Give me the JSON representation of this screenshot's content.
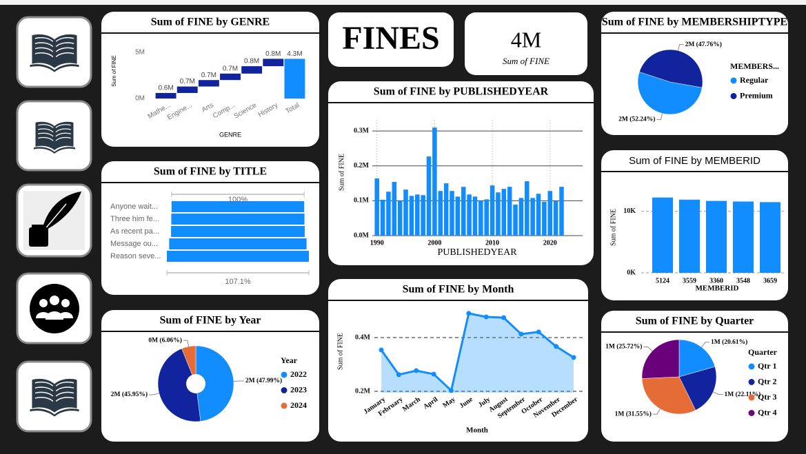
{
  "header": {
    "title": "FINES"
  },
  "kpi": {
    "value": "4M",
    "label": "Sum of FINE"
  },
  "chart_data": [
    {
      "type": "waterfall",
      "title": "Sum of FINE by GENRE",
      "x_label": "GENRE",
      "y_label": "Sum of FINE",
      "categories": [
        "Mathe...",
        "Engine...",
        "Arts",
        "Comp...",
        "Science",
        "History",
        "Total"
      ],
      "values": [
        0.6,
        0.7,
        0.7,
        0.7,
        0.8,
        0.8,
        4.3
      ],
      "value_labels": [
        "0.6M",
        "0.7M",
        "0.7M",
        "0.7M",
        "0.8M",
        "0.8M",
        "4.3M"
      ],
      "colors": {
        "increase": "#12239E",
        "total": "#118DFF"
      },
      "ylim": [
        0,
        5
      ],
      "yticks": [
        {
          "value": 0,
          "label": "0M"
        },
        {
          "value": 5,
          "label": "5M"
        }
      ]
    },
    {
      "type": "funnel",
      "title": "Sum of FINE by TITLE",
      "categories": [
        "Anyone wait...",
        "Three him fe...",
        "As recent pa...",
        "Message ou...",
        "Reason seve..."
      ],
      "values": [
        100,
        100.4,
        100.8,
        103.6,
        107.1
      ],
      "color": "#118DFF",
      "annotations": [
        "100%",
        "107.1%"
      ]
    },
    {
      "type": "donut",
      "title": "Sum of FINE by Year",
      "legend_title": "Year",
      "categories": [
        "2022",
        "2023",
        "2024"
      ],
      "values": [
        47.99,
        45.95,
        6.06
      ],
      "value_labels": [
        "2M (47.99%)",
        "2M (45.95%)",
        "0M (6.06%)"
      ],
      "colors": [
        "#118DFF",
        "#12239E",
        "#E66C37"
      ],
      "legend": "right"
    },
    {
      "type": "bar",
      "title": "Sum of FINE by PUBLISHEDYEAR",
      "x_label": "PUBLISHEDYEAR",
      "y_label": "Sum of FINE",
      "x": [
        1990,
        1991,
        1992,
        1993,
        1994,
        1995,
        1996,
        1997,
        1998,
        1999,
        2000,
        2001,
        2002,
        2003,
        2004,
        2005,
        2006,
        2007,
        2008,
        2009,
        2010,
        2011,
        2012,
        2013,
        2014,
        2015,
        2016,
        2017,
        2018,
        2019,
        2020,
        2021,
        2022
      ],
      "values": [
        0.164,
        0.103,
        0.126,
        0.154,
        0.1,
        0.132,
        0.114,
        0.118,
        0.116,
        0.227,
        0.31,
        0.128,
        0.15,
        0.128,
        0.112,
        0.14,
        0.118,
        0.112,
        0.1,
        0.104,
        0.144,
        0.124,
        0.134,
        0.14,
        0.089,
        0.108,
        0.156,
        0.108,
        0.12,
        0.097,
        0.128,
        0.099,
        0.14
      ],
      "color": "#118DFF",
      "xlim": [
        1989.2,
        2022.9
      ],
      "xticks": [
        1990,
        2000,
        2010,
        2020
      ],
      "ylim": [
        0,
        0.33
      ],
      "yticks": [
        {
          "value": 0,
          "label": "0.0M"
        },
        {
          "value": 0.1,
          "label": "0.1M"
        },
        {
          "value": 0.2,
          "label": "0.2M"
        },
        {
          "value": 0.3,
          "label": "0.3M"
        }
      ],
      "grid": true
    },
    {
      "type": "area",
      "title": "Sum of FINE by Month",
      "x_label": "Month",
      "y_label": "Sum of FINE",
      "categories": [
        "January",
        "February",
        "March",
        "April",
        "May",
        "June",
        "July",
        "August",
        "September",
        "October",
        "November",
        "December"
      ],
      "values": [
        0.354,
        0.262,
        0.277,
        0.264,
        0.203,
        0.49,
        0.477,
        0.474,
        0.413,
        0.421,
        0.367,
        0.326
      ],
      "color": "#118DFF",
      "ylim": [
        0.195,
        0.5
      ],
      "yticks": [
        {
          "value": 0.2,
          "label": "0.2M"
        },
        {
          "value": 0.4,
          "label": "0.4M"
        }
      ],
      "grid": true
    },
    {
      "type": "pie",
      "title": "Sum of FINE by MEMBERSHIPTYPE",
      "legend_title": "MEMBERS...",
      "categories": [
        "Regular",
        "Premium"
      ],
      "values": [
        52.24,
        47.76
      ],
      "value_labels": [
        "2M (52.24%)",
        "2M (47.76%)"
      ],
      "colors": [
        "#118DFF",
        "#12239E"
      ],
      "legend": "right"
    },
    {
      "type": "bar",
      "title": "Sum of FINE by MEMBERID",
      "x_label": "MEMBERID",
      "y_label": "Sum of FINE",
      "categories": [
        "5124",
        "3559",
        "3360",
        "3548",
        "3659"
      ],
      "values": [
        12.25,
        11.9,
        11.7,
        11.6,
        11.5
      ],
      "color": "#118DFF",
      "ylim": [
        0,
        13
      ],
      "yticks": [
        {
          "value": 0,
          "label": "0K"
        },
        {
          "value": 10,
          "label": "10K"
        }
      ],
      "grid": true
    },
    {
      "type": "pie",
      "title": "Sum of FINE by Quarter",
      "legend_title": "Quarter",
      "categories": [
        "Qtr 1",
        "Qtr 2",
        "Qtr 3",
        "Qtr 4"
      ],
      "values": [
        20.61,
        22.11,
        31.55,
        25.72
      ],
      "value_labels": [
        "1M (20.61%)",
        "1M (22.11%)",
        "1M (31.55%)",
        "1M (25.72%)"
      ],
      "colors": [
        "#118DFF",
        "#12239E",
        "#E66C37",
        "#6B007B"
      ],
      "legend": "right"
    }
  ]
}
